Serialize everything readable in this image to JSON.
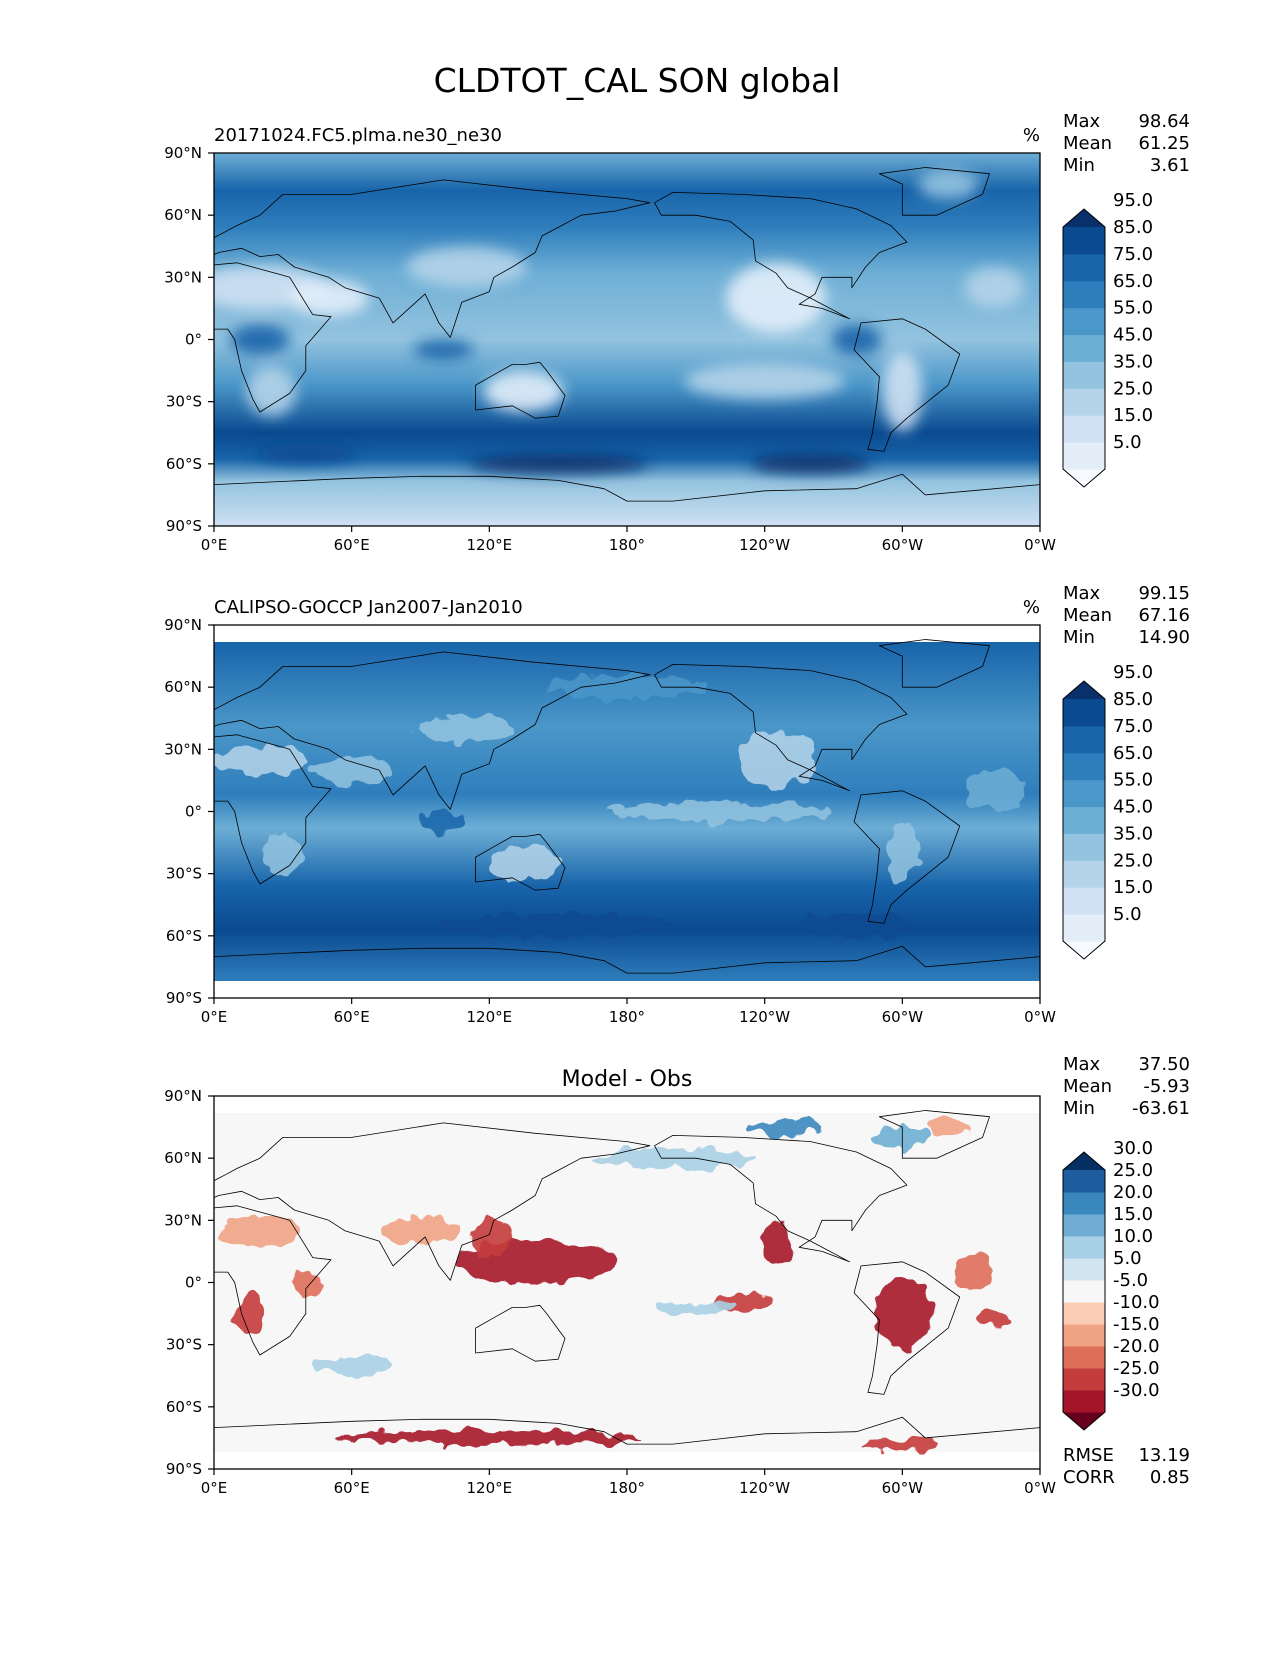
{
  "title": "CLDTOT_CAL SON global",
  "panels": [
    {
      "id": "model",
      "left_label": "20171024.FC5.plma.ne30_ne30",
      "center_label": "",
      "units": "%",
      "stats": [
        {
          "label": "Max",
          "value": "98.64"
        },
        {
          "label": "Mean",
          "value": "61.25"
        },
        {
          "label": "Min",
          "value": "3.61"
        }
      ],
      "colorbar": {
        "labels": [
          "95.0",
          "85.0",
          "75.0",
          "65.0",
          "55.0",
          "45.0",
          "35.0",
          "25.0",
          "15.0",
          "5.0"
        ],
        "colors": [
          "#f7fbff",
          "#e3eef9",
          "#cfe1f2",
          "#b5d4e9",
          "#93c3df",
          "#6daed5",
          "#4b97c9",
          "#2f7ebc",
          "#1864aa",
          "#0a4a90",
          "#08306b"
        ]
      },
      "footer_stats": []
    },
    {
      "id": "obs",
      "left_label": "CALIPSO-GOCCP Jan2007-Jan2010",
      "center_label": "",
      "units": "%",
      "stats": [
        {
          "label": "Max",
          "value": "99.15"
        },
        {
          "label": "Mean",
          "value": "67.16"
        },
        {
          "label": "Min",
          "value": "14.90"
        }
      ],
      "colorbar": {
        "labels": [
          "95.0",
          "85.0",
          "75.0",
          "65.0",
          "55.0",
          "45.0",
          "35.0",
          "25.0",
          "15.0",
          "5.0"
        ],
        "colors": [
          "#f7fbff",
          "#e3eef9",
          "#cfe1f2",
          "#b5d4e9",
          "#93c3df",
          "#6daed5",
          "#4b97c9",
          "#2f7ebc",
          "#1864aa",
          "#0a4a90",
          "#08306b"
        ]
      },
      "footer_stats": []
    },
    {
      "id": "diff",
      "left_label": "",
      "center_label": "Model - Obs",
      "units": "",
      "stats": [
        {
          "label": "Max",
          "value": "37.50"
        },
        {
          "label": "Mean",
          "value": "-5.93"
        },
        {
          "label": "Min",
          "value": "-63.61"
        }
      ],
      "colorbar": {
        "labels": [
          "30.0",
          "25.0",
          "20.0",
          "15.0",
          "10.0",
          "5.0",
          "-5.0",
          "-10.0",
          "-15.0",
          "-20.0",
          "-25.0",
          "-30.0"
        ],
        "colors": [
          "#67001f",
          "#a51529",
          "#c43c3c",
          "#dd6f59",
          "#f0a285",
          "#fbccb4",
          "#f7f7f7",
          "#d1e5f0",
          "#a8d0e4",
          "#6faed2",
          "#3a87bd",
          "#1c5c9f",
          "#053061"
        ]
      },
      "footer_stats": [
        {
          "label": "RMSE",
          "value": "13.19"
        },
        {
          "label": "CORR",
          "value": "0.85"
        }
      ]
    }
  ],
  "axes": {
    "lat_ticks": [
      "90°N",
      "60°N",
      "30°N",
      "0°",
      "30°S",
      "60°S",
      "90°S"
    ],
    "lon_ticks": [
      "0°E",
      "60°E",
      "120°E",
      "180°",
      "120°W",
      "60°W",
      "0°W"
    ]
  }
}
